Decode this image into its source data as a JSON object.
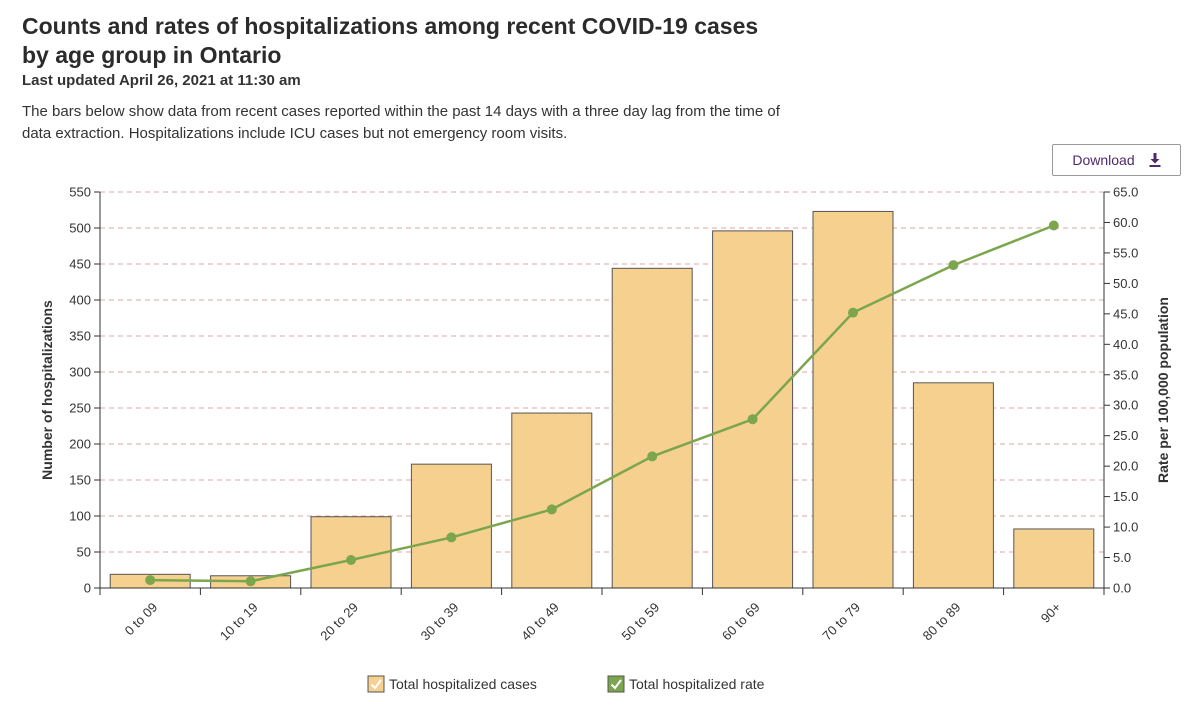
{
  "header": {
    "title": "Counts and rates of hospitalizations among recent COVID-19 cases by age group in Ontario",
    "updated": "Last updated April 26, 2021 at 11:30 am",
    "description": "The bars below show data from recent cases reported within the past 14 days with a three day lag from the time of data extraction. Hospitalizations include ICU cases but not emergency room visits."
  },
  "toolbar": {
    "download_label": "Download",
    "download_icon": "download-icon"
  },
  "colors": {
    "bar_fill": "#f6d08f",
    "bar_stroke": "#555555",
    "line": "#7ba64e",
    "grid": "#e3a6a6"
  },
  "chart_data": {
    "type": "bar",
    "categories": [
      "0 to 09",
      "10 to 19",
      "20 to 29",
      "30 to 39",
      "40 to 49",
      "50 to 59",
      "60 to 69",
      "70 to 79",
      "80 to 89",
      "90+"
    ],
    "series": [
      {
        "name": "Total hospitalized cases",
        "type": "bar",
        "axis": "left",
        "values": [
          19,
          17,
          99,
          172,
          243,
          444,
          496,
          523,
          285,
          82
        ]
      },
      {
        "name": "Total hospitalized rate",
        "type": "line",
        "axis": "right",
        "values": [
          1.3,
          1.1,
          4.6,
          8.3,
          12.9,
          21.6,
          27.7,
          45.2,
          53.0,
          59.5
        ]
      }
    ],
    "ylabel": "Number of hospitalizations",
    "y2label": "Rate per 100,000 population",
    "ylim": [
      0,
      550
    ],
    "yticks": [
      "0",
      "50",
      "100",
      "150",
      "200",
      "250",
      "300",
      "350",
      "400",
      "450",
      "500",
      "550"
    ],
    "y2lim": [
      0,
      65
    ],
    "y2ticks": [
      "0.0",
      "5.0",
      "10.0",
      "15.0",
      "20.0",
      "25.0",
      "30.0",
      "35.0",
      "40.0",
      "45.0",
      "50.0",
      "55.0",
      "60.0",
      "65.0"
    ],
    "grid": true,
    "legend": "bottom"
  }
}
